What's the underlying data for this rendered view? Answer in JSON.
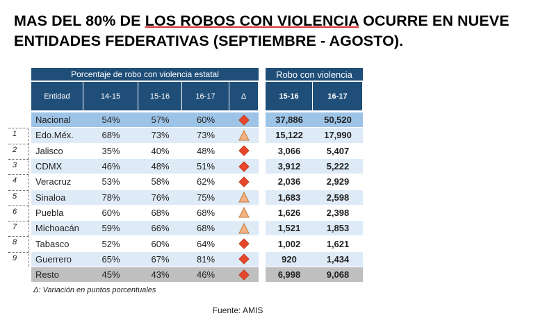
{
  "header": {
    "title_pre": "MAS DEL 80% DE ",
    "title_underlined": "LOS ROBOS CON VIOLENCIA",
    "title_post": " OCURRE EN NUEVE",
    "title_line2": "ENTIDADES FEDERATIVAS (SEPTIEMBRE - AGOSTO)."
  },
  "table": {
    "left_header": "Porcentaje de robo con violencia estatal",
    "right_header": "Robo con violencia",
    "left_columns": [
      "Entidad",
      "14-15",
      "15-16",
      "16-17",
      "Δ"
    ],
    "right_columns": [
      "15-16",
      "16-17"
    ],
    "rows": [
      {
        "entity": "Nacional",
        "p1415": "54%",
        "p1516": "57%",
        "p1617": "60%",
        "delta_icon": "diamond",
        "r1516": "37,886",
        "r1617": "50,520"
      },
      {
        "rank": "1",
        "entity": "Edo.Méx.",
        "p1415": "68%",
        "p1516": "73%",
        "p1617": "73%",
        "delta_icon": "triangle",
        "r1516": "15,122",
        "r1617": "17,990"
      },
      {
        "rank": "2",
        "entity": "Jalisco",
        "p1415": "35%",
        "p1516": "40%",
        "p1617": "48%",
        "delta_icon": "diamond",
        "r1516": "3,066",
        "r1617": "5,407"
      },
      {
        "rank": "3",
        "entity": "CDMX",
        "p1415": "46%",
        "p1516": "48%",
        "p1617": "51%",
        "delta_icon": "diamond",
        "r1516": "3,912",
        "r1617": "5,222"
      },
      {
        "rank": "4",
        "entity": "Veracruz",
        "p1415": "53%",
        "p1516": "58%",
        "p1617": "62%",
        "delta_icon": "diamond",
        "r1516": "2,036",
        "r1617": "2,929"
      },
      {
        "rank": "5",
        "entity": "Sinaloa",
        "p1415": "78%",
        "p1516": "76%",
        "p1617": "75%",
        "delta_icon": "triangle",
        "r1516": "1,683",
        "r1617": "2,598"
      },
      {
        "rank": "6",
        "entity": "Puebla",
        "p1415": "60%",
        "p1516": "68%",
        "p1617": "68%",
        "delta_icon": "triangle",
        "r1516": "1,626",
        "r1617": "2,398"
      },
      {
        "rank": "7",
        "entity": "Michoacán",
        "p1415": "59%",
        "p1516": "66%",
        "p1617": "68%",
        "delta_icon": "triangle",
        "r1516": "1,521",
        "r1617": "1,853"
      },
      {
        "rank": "8",
        "entity": "Tabasco",
        "p1415": "52%",
        "p1516": "60%",
        "p1617": "64%",
        "delta_icon": "diamond",
        "r1516": "1,002",
        "r1617": "1,621"
      },
      {
        "rank": "9",
        "entity": "Guerrero",
        "p1415": "65%",
        "p1516": "67%",
        "p1617": "81%",
        "delta_icon": "diamond",
        "r1516": "920",
        "r1617": "1,434"
      },
      {
        "entity": "Resto",
        "p1415": "45%",
        "p1516": "43%",
        "p1617": "46%",
        "delta_icon": "diamond",
        "r1516": "6,998",
        "r1617": "9,068"
      }
    ]
  },
  "footnote": "Δ: Variación en puntos porcentuales",
  "source": "Fuente: AMIS"
}
